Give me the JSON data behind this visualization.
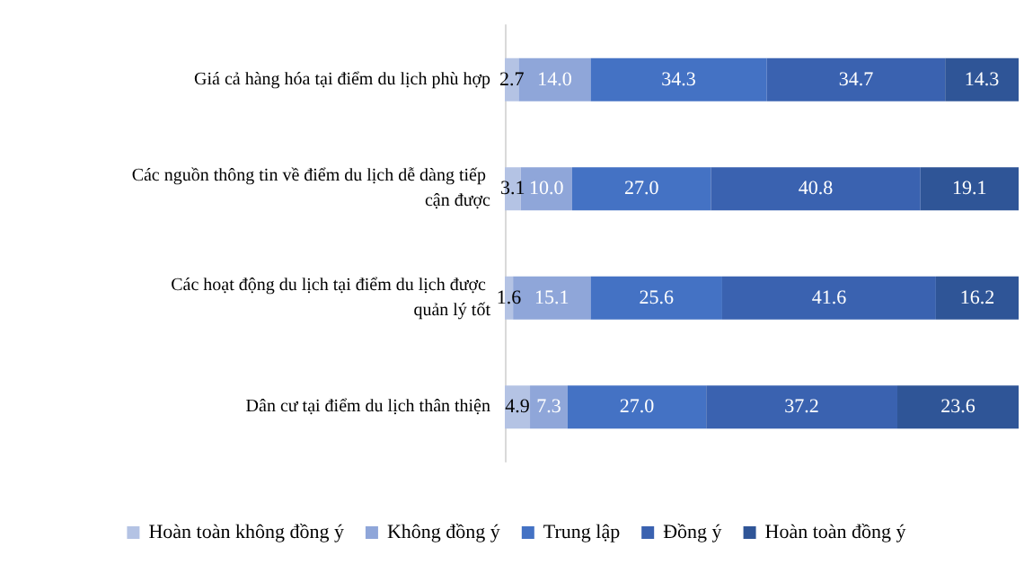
{
  "chart_data": {
    "type": "bar",
    "orientation": "horizontal",
    "stacked": true,
    "legend": "bottom",
    "grid": false,
    "tick_labels": "y",
    "xlim": [
      0,
      100
    ],
    "categories": [
      "Giá cả hàng hóa tại điểm du lịch phù hợp",
      "Các nguồn thông tin về điểm du lịch dễ dàng tiếp cận được",
      "Các hoạt động du lịch tại điểm du lịch được quản lý tốt",
      "Dân cư tại điểm du lịch thân thiện"
    ],
    "series": [
      {
        "name": "Hoàn toàn không đồng ý",
        "color": "#b4c3e4",
        "values": [
          2.7,
          3.1,
          1.6,
          4.9
        ],
        "value_labels": [
          "2.7",
          "3.1",
          "1.6",
          "4.9"
        ]
      },
      {
        "name": "Không đồng ý",
        "color": "#8fa6d9",
        "values": [
          14.0,
          10.0,
          15.1,
          7.3
        ],
        "value_labels": [
          "14.0",
          "10.0",
          "15.1",
          "7.3"
        ]
      },
      {
        "name": "Trung lập",
        "color": "#4472c4",
        "values": [
          34.3,
          27.0,
          25.6,
          27.0
        ],
        "value_labels": [
          "34.3",
          "27.0",
          "25.6",
          "27.0"
        ]
      },
      {
        "name": "Đồng ý",
        "color": "#3a62b0",
        "values": [
          34.7,
          40.8,
          41.6,
          37.2
        ],
        "value_labels": [
          "34.7",
          "40.8",
          "41.6",
          "37.2"
        ]
      },
      {
        "name": "Hoàn toàn đồng ý",
        "color": "#2f5597",
        "values": [
          14.3,
          19.1,
          16.2,
          23.6
        ],
        "value_labels": [
          "14.3",
          "19.1",
          "16.2",
          "23.6"
        ]
      }
    ]
  }
}
